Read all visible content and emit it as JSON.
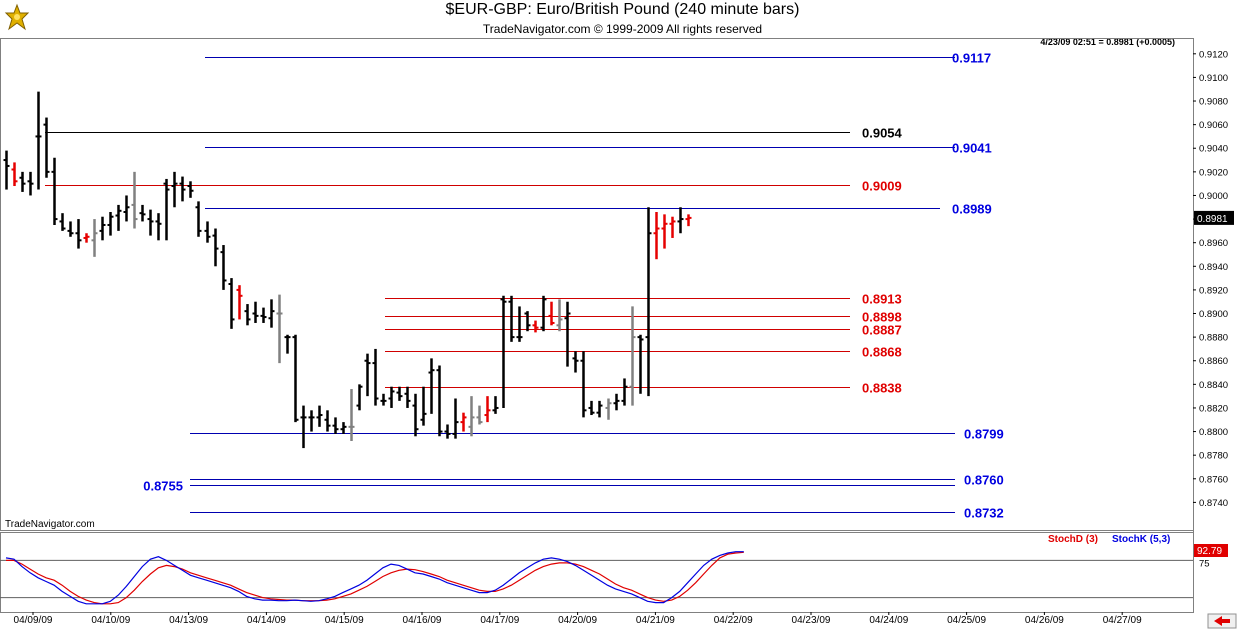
{
  "header": {
    "title": "$EUR-GBP:  Euro/British Pound  (240 minute bars)",
    "copyright": "TradeNavigator.com © 1999-2009 All rights reserved",
    "quote": "4/23/09 02:51 = 0.8981 (+0.0005)",
    "watermark": "TradeNavigator.com"
  },
  "colors": {
    "up": "#000000",
    "down": "#000000",
    "red": "#e60000",
    "gray": "#808080",
    "blue_line": "#0000b0",
    "red_line": "#d00000",
    "black_line": "#000000",
    "stoch_d": "#e00000",
    "stoch_k": "#0000e0"
  },
  "chart_data": [
    {
      "type": "ohlc",
      "title": "$EUR-GBP:  Euro/British Pound  (240 minute bars)",
      "ylim": [
        0.872,
        0.913
      ],
      "y_ticks": [
        "0.9120",
        "0.9100",
        "0.9080",
        "0.9060",
        "0.9040",
        "0.9020",
        "0.9000",
        "0.8980",
        "0.8960",
        "0.8940",
        "0.8920",
        "0.8900",
        "0.8880",
        "0.8860",
        "0.8840",
        "0.8820",
        "0.8800",
        "0.8780",
        "0.8760",
        "0.8740"
      ],
      "last_price_label": "0.8981",
      "x_labels": [
        "04/09/09",
        "04/10/09",
        "04/13/09",
        "04/14/09",
        "04/15/09",
        "04/16/09",
        "04/17/09",
        "04/20/09",
        "04/21/09",
        "04/22/09",
        "04/23/09",
        "04/24/09",
        "04/25/09",
        "04/26/09",
        "04/27/09"
      ],
      "bars": [
        {
          "o": 0.903,
          "h": 0.9038,
          "l": 0.9005,
          "c": 0.9025,
          "col": "k"
        },
        {
          "o": 0.9022,
          "h": 0.9028,
          "l": 0.9008,
          "c": 0.9012,
          "col": "r"
        },
        {
          "o": 0.9015,
          "h": 0.902,
          "l": 0.9003,
          "c": 0.901,
          "col": "k"
        },
        {
          "o": 0.9012,
          "h": 0.902,
          "l": 0.9,
          "c": 0.901,
          "col": "k"
        },
        {
          "o": 0.905,
          "h": 0.9088,
          "l": 0.9005,
          "c": 0.905,
          "col": "k"
        },
        {
          "o": 0.906,
          "h": 0.9066,
          "l": 0.9015,
          "c": 0.902,
          "col": "k"
        },
        {
          "o": 0.902,
          "h": 0.9032,
          "l": 0.8975,
          "c": 0.898,
          "col": "k"
        },
        {
          "o": 0.8978,
          "h": 0.8985,
          "l": 0.897,
          "c": 0.8972,
          "col": "k"
        },
        {
          "o": 0.897,
          "h": 0.8978,
          "l": 0.8965,
          "c": 0.8968,
          "col": "k"
        },
        {
          "o": 0.8968,
          "h": 0.898,
          "l": 0.8955,
          "c": 0.8962,
          "col": "k"
        },
        {
          "o": 0.8964,
          "h": 0.8968,
          "l": 0.896,
          "c": 0.8965,
          "col": "r"
        },
        {
          "o": 0.8962,
          "h": 0.898,
          "l": 0.8948,
          "c": 0.8968,
          "col": "g"
        },
        {
          "o": 0.897,
          "h": 0.8982,
          "l": 0.8962,
          "c": 0.8975,
          "col": "k"
        },
        {
          "o": 0.8975,
          "h": 0.8986,
          "l": 0.8966,
          "c": 0.8982,
          "col": "k"
        },
        {
          "o": 0.8983,
          "h": 0.8992,
          "l": 0.897,
          "c": 0.8987,
          "col": "k"
        },
        {
          "o": 0.8986,
          "h": 0.9,
          "l": 0.8978,
          "c": 0.899,
          "col": "k"
        },
        {
          "o": 0.8992,
          "h": 0.902,
          "l": 0.8972,
          "c": 0.898,
          "col": "g"
        },
        {
          "o": 0.8985,
          "h": 0.8992,
          "l": 0.8978,
          "c": 0.8984,
          "col": "k"
        },
        {
          "o": 0.898,
          "h": 0.8988,
          "l": 0.8966,
          "c": 0.8978,
          "col": "k"
        },
        {
          "o": 0.8978,
          "h": 0.8985,
          "l": 0.8962,
          "c": 0.8976,
          "col": "k"
        },
        {
          "o": 0.901,
          "h": 0.9014,
          "l": 0.8962,
          "c": 0.9005,
          "col": "k"
        },
        {
          "o": 0.9008,
          "h": 0.902,
          "l": 0.899,
          "c": 0.901,
          "col": "k"
        },
        {
          "o": 0.901,
          "h": 0.9016,
          "l": 0.8995,
          "c": 0.9005,
          "col": "k"
        },
        {
          "o": 0.9008,
          "h": 0.9012,
          "l": 0.8998,
          "c": 0.9004,
          "col": "k"
        },
        {
          "o": 0.899,
          "h": 0.8995,
          "l": 0.8965,
          "c": 0.897,
          "col": "k"
        },
        {
          "o": 0.897,
          "h": 0.8978,
          "l": 0.896,
          "c": 0.8965,
          "col": "k"
        },
        {
          "o": 0.8966,
          "h": 0.8972,
          "l": 0.894,
          "c": 0.8955,
          "col": "k"
        },
        {
          "o": 0.8952,
          "h": 0.8958,
          "l": 0.892,
          "c": 0.8928,
          "col": "k"
        },
        {
          "o": 0.8925,
          "h": 0.893,
          "l": 0.8887,
          "c": 0.8895,
          "col": "k"
        },
        {
          "o": 0.892,
          "h": 0.8924,
          "l": 0.8895,
          "c": 0.8915,
          "col": "r"
        },
        {
          "o": 0.8902,
          "h": 0.8908,
          "l": 0.889,
          "c": 0.8895,
          "col": "k"
        },
        {
          "o": 0.89,
          "h": 0.891,
          "l": 0.8892,
          "c": 0.8898,
          "col": "k"
        },
        {
          "o": 0.8898,
          "h": 0.8905,
          "l": 0.8892,
          "c": 0.8897,
          "col": "k"
        },
        {
          "o": 0.8896,
          "h": 0.8912,
          "l": 0.8888,
          "c": 0.8902,
          "col": "k"
        },
        {
          "o": 0.89,
          "h": 0.8916,
          "l": 0.8858,
          "c": 0.89,
          "col": "g"
        },
        {
          "o": 0.888,
          "h": 0.8882,
          "l": 0.8866,
          "c": 0.888,
          "col": "k"
        },
        {
          "o": 0.888,
          "h": 0.8882,
          "l": 0.8808,
          "c": 0.881,
          "col": "k"
        },
        {
          "o": 0.8812,
          "h": 0.8822,
          "l": 0.8786,
          "c": 0.8812,
          "col": "k"
        },
        {
          "o": 0.8812,
          "h": 0.8818,
          "l": 0.88,
          "c": 0.8812,
          "col": "k"
        },
        {
          "o": 0.8812,
          "h": 0.8822,
          "l": 0.8804,
          "c": 0.8814,
          "col": "k"
        },
        {
          "o": 0.881,
          "h": 0.8818,
          "l": 0.88,
          "c": 0.8805,
          "col": "k"
        },
        {
          "o": 0.8805,
          "h": 0.8812,
          "l": 0.8798,
          "c": 0.8802,
          "col": "k"
        },
        {
          "o": 0.8802,
          "h": 0.8808,
          "l": 0.8798,
          "c": 0.8804,
          "col": "k"
        },
        {
          "o": 0.8804,
          "h": 0.8836,
          "l": 0.8792,
          "c": 0.8804,
          "col": "g"
        },
        {
          "o": 0.8822,
          "h": 0.884,
          "l": 0.8818,
          "c": 0.8838,
          "col": "k"
        },
        {
          "o": 0.886,
          "h": 0.8866,
          "l": 0.883,
          "c": 0.8858,
          "col": "k"
        },
        {
          "o": 0.8858,
          "h": 0.887,
          "l": 0.8822,
          "c": 0.8828,
          "col": "k"
        },
        {
          "o": 0.8826,
          "h": 0.8832,
          "l": 0.8822,
          "c": 0.8826,
          "col": "k"
        },
        {
          "o": 0.8828,
          "h": 0.8838,
          "l": 0.882,
          "c": 0.8834,
          "col": "k"
        },
        {
          "o": 0.8833,
          "h": 0.8838,
          "l": 0.8826,
          "c": 0.883,
          "col": "k"
        },
        {
          "o": 0.8832,
          "h": 0.8838,
          "l": 0.882,
          "c": 0.8826,
          "col": "k"
        },
        {
          "o": 0.8822,
          "h": 0.8832,
          "l": 0.8796,
          "c": 0.8802,
          "col": "k"
        },
        {
          "o": 0.881,
          "h": 0.8838,
          "l": 0.8805,
          "c": 0.8815,
          "col": "k"
        },
        {
          "o": 0.885,
          "h": 0.8862,
          "l": 0.8815,
          "c": 0.8852,
          "col": "k"
        },
        {
          "o": 0.8852,
          "h": 0.8856,
          "l": 0.8796,
          "c": 0.88,
          "col": "k"
        },
        {
          "o": 0.88,
          "h": 0.8806,
          "l": 0.8794,
          "c": 0.8798,
          "col": "k"
        },
        {
          "o": 0.8798,
          "h": 0.8828,
          "l": 0.8794,
          "c": 0.8808,
          "col": "k"
        },
        {
          "o": 0.8808,
          "h": 0.8816,
          "l": 0.88,
          "c": 0.8812,
          "col": "r"
        },
        {
          "o": 0.8804,
          "h": 0.883,
          "l": 0.8796,
          "c": 0.8812,
          "col": "g"
        },
        {
          "o": 0.8812,
          "h": 0.8822,
          "l": 0.8806,
          "c": 0.8808,
          "col": "g"
        },
        {
          "o": 0.8814,
          "h": 0.883,
          "l": 0.8808,
          "c": 0.8818,
          "col": "r"
        },
        {
          "o": 0.8818,
          "h": 0.883,
          "l": 0.8815,
          "c": 0.882,
          "col": "k"
        },
        {
          "o": 0.8912,
          "h": 0.8915,
          "l": 0.882,
          "c": 0.891,
          "col": "k"
        },
        {
          "o": 0.891,
          "h": 0.8915,
          "l": 0.8876,
          "c": 0.888,
          "col": "k"
        },
        {
          "o": 0.888,
          "h": 0.8906,
          "l": 0.8876,
          "c": 0.888,
          "col": "k"
        },
        {
          "o": 0.89,
          "h": 0.8902,
          "l": 0.8885,
          "c": 0.889,
          "col": "k"
        },
        {
          "o": 0.889,
          "h": 0.8894,
          "l": 0.8884,
          "c": 0.8888,
          "col": "r"
        },
        {
          "o": 0.8888,
          "h": 0.8915,
          "l": 0.8885,
          "c": 0.8912,
          "col": "k"
        },
        {
          "o": 0.8898,
          "h": 0.891,
          "l": 0.889,
          "c": 0.8892,
          "col": "r"
        },
        {
          "o": 0.889,
          "h": 0.8912,
          "l": 0.8885,
          "c": 0.8895,
          "col": "g"
        },
        {
          "o": 0.8896,
          "h": 0.891,
          "l": 0.8855,
          "c": 0.89,
          "col": "k"
        },
        {
          "o": 0.8862,
          "h": 0.8868,
          "l": 0.885,
          "c": 0.886,
          "col": "k"
        },
        {
          "o": 0.886,
          "h": 0.8868,
          "l": 0.8812,
          "c": 0.8818,
          "col": "k"
        },
        {
          "o": 0.882,
          "h": 0.8826,
          "l": 0.8814,
          "c": 0.8816,
          "col": "k"
        },
        {
          "o": 0.8816,
          "h": 0.8826,
          "l": 0.8812,
          "c": 0.8822,
          "col": "k"
        },
        {
          "o": 0.882,
          "h": 0.8828,
          "l": 0.881,
          "c": 0.8824,
          "col": "g"
        },
        {
          "o": 0.8824,
          "h": 0.8832,
          "l": 0.8818,
          "c": 0.8826,
          "col": "k"
        },
        {
          "o": 0.8826,
          "h": 0.8845,
          "l": 0.8822,
          "c": 0.8838,
          "col": "k"
        },
        {
          "o": 0.8838,
          "h": 0.8906,
          "l": 0.8822,
          "c": 0.888,
          "col": "g"
        },
        {
          "o": 0.888,
          "h": 0.8882,
          "l": 0.8832,
          "c": 0.8878,
          "col": "k"
        },
        {
          "o": 0.888,
          "h": 0.899,
          "l": 0.883,
          "c": 0.8968,
          "col": "k"
        },
        {
          "o": 0.8968,
          "h": 0.8986,
          "l": 0.8946,
          "c": 0.8972,
          "col": "r"
        },
        {
          "o": 0.8972,
          "h": 0.8984,
          "l": 0.8955,
          "c": 0.8976,
          "col": "r"
        },
        {
          "o": 0.8976,
          "h": 0.8982,
          "l": 0.8964,
          "c": 0.8978,
          "col": "r"
        },
        {
          "o": 0.8978,
          "h": 0.899,
          "l": 0.8968,
          "c": 0.898,
          "col": "k"
        },
        {
          "o": 0.898,
          "h": 0.8984,
          "l": 0.8974,
          "c": 0.8981,
          "col": "r"
        }
      ],
      "levels": [
        {
          "value": 0.9117,
          "label": "0.9117",
          "color": "blue",
          "start": "04/13/09",
          "label_side": "right"
        },
        {
          "value": 0.9054,
          "label": "0.9054",
          "color": "black",
          "start": "04/09/09",
          "label_side": "right"
        },
        {
          "value": 0.9041,
          "label": "0.9041",
          "color": "blue",
          "start": "04/13/09",
          "label_side": "right"
        },
        {
          "value": 0.9009,
          "label": "0.9009",
          "color": "red",
          "start": "04/09/09",
          "label_side": "right"
        },
        {
          "value": 0.8989,
          "label": "0.8989",
          "color": "blue",
          "start": "04/13/09",
          "label_side": "right"
        },
        {
          "value": 0.8913,
          "label": "0.8913",
          "color": "red",
          "start": "04/15/09",
          "label_side": "right"
        },
        {
          "value": 0.8898,
          "label": "0.8898",
          "color": "red",
          "start": "04/15/09",
          "label_side": "right"
        },
        {
          "value": 0.8887,
          "label": "0.8887",
          "color": "red",
          "start": "04/15/09",
          "label_side": "right"
        },
        {
          "value": 0.8868,
          "label": "0.8868",
          "color": "red",
          "start": "04/15/09",
          "label_side": "right"
        },
        {
          "value": 0.8838,
          "label": "0.8838",
          "color": "red",
          "start": "04/15/09",
          "label_side": "right"
        },
        {
          "value": 0.8799,
          "label": "0.8799",
          "color": "blue",
          "start": "04/13/09",
          "label_side": "right"
        },
        {
          "value": 0.876,
          "label": "0.8760",
          "color": "blue",
          "start": "04/13/09",
          "label_side": "right"
        },
        {
          "value": 0.8755,
          "label": "0.8755",
          "color": "blue",
          "start": "04/13/09",
          "label_side": "left"
        },
        {
          "value": 0.8732,
          "label": "0.8732",
          "color": "blue",
          "start": "04/13/09",
          "label_side": "right"
        }
      ]
    },
    {
      "type": "line",
      "indicator": "stochastic",
      "ylim": [
        0,
        100
      ],
      "y_ticks": [
        "75"
      ],
      "reference_lines": [
        20,
        80
      ],
      "last_value_label": "92.79",
      "series": [
        {
          "name": "StochD (3)",
          "color": "red",
          "values": [
            80,
            80,
            74,
            66,
            58,
            52,
            48,
            40,
            30,
            22,
            16,
            12,
            10,
            10,
            12,
            20,
            32,
            46,
            58,
            68,
            72,
            70,
            66,
            60,
            56,
            52,
            48,
            44,
            40,
            34,
            28,
            24,
            20,
            18,
            17,
            16,
            16,
            15,
            15,
            15,
            16,
            18,
            22,
            26,
            32,
            38,
            46,
            54,
            60,
            64,
            66,
            65,
            62,
            58,
            54,
            48,
            44,
            40,
            36,
            32,
            30,
            30,
            34,
            40,
            48,
            56,
            64,
            70,
            74,
            76,
            76,
            74,
            70,
            64,
            58,
            50,
            42,
            36,
            32,
            26,
            20,
            16,
            14,
            16,
            22,
            32,
            44,
            58,
            72,
            84,
            90,
            92,
            93
          ]
        },
        {
          "name": "StochK (5,3)",
          "color": "blue",
          "values": [
            84,
            82,
            70,
            60,
            52,
            46,
            40,
            30,
            22,
            14,
            10,
            10,
            10,
            14,
            24,
            38,
            54,
            70,
            82,
            86,
            80,
            72,
            64,
            56,
            52,
            48,
            44,
            40,
            36,
            30,
            22,
            18,
            16,
            16,
            15,
            15,
            16,
            15,
            14,
            15,
            18,
            22,
            28,
            34,
            40,
            48,
            58,
            68,
            74,
            72,
            66,
            60,
            58,
            54,
            50,
            44,
            40,
            36,
            32,
            28,
            28,
            32,
            40,
            50,
            60,
            68,
            76,
            82,
            84,
            82,
            78,
            72,
            64,
            56,
            48,
            40,
            34,
            30,
            26,
            20,
            14,
            12,
            12,
            20,
            30,
            44,
            58,
            72,
            82,
            88,
            92,
            94,
            94
          ]
        }
      ],
      "legend": [
        "StochD (3)",
        "StochK (5,3)"
      ]
    }
  ]
}
